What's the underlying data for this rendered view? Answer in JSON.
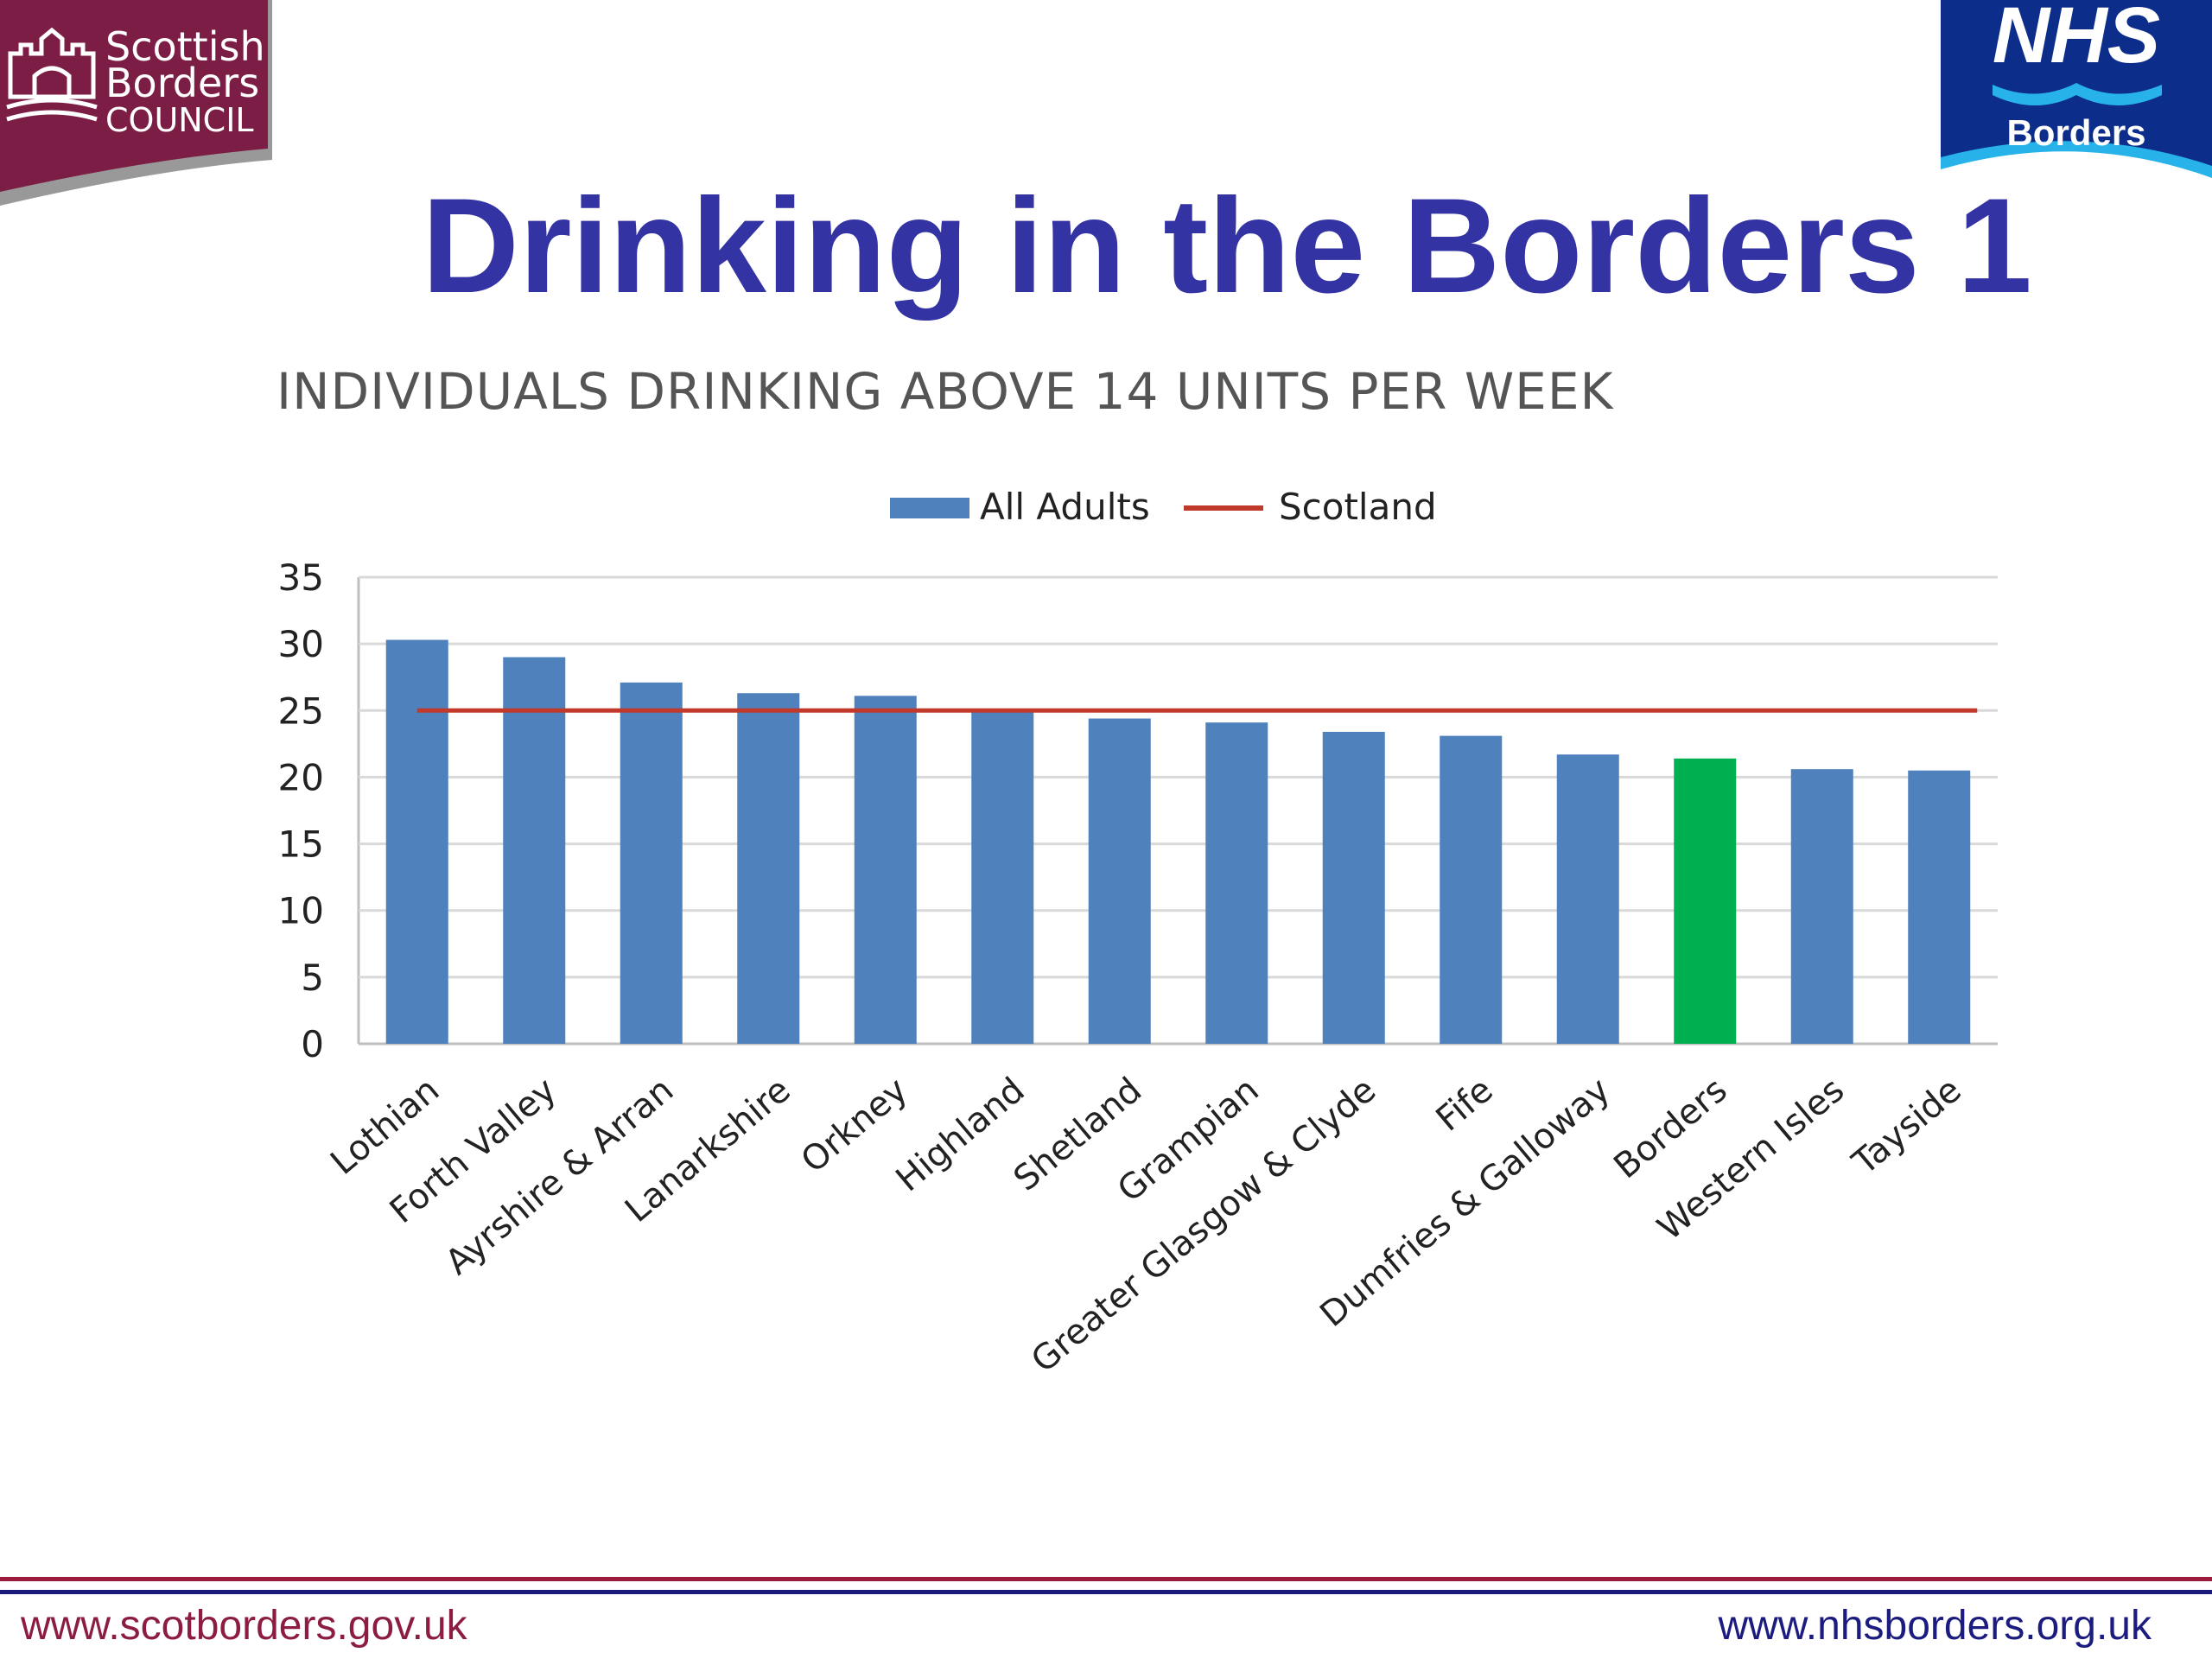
{
  "logos": {
    "left": {
      "lines": [
        "Scottish",
        "Borders",
        "COUNCIL"
      ],
      "color": "#7b1d44"
    },
    "right": {
      "brand": "NHS",
      "region": "Borders",
      "color": "#0c2d8a",
      "wave_color": "#27b3ea"
    }
  },
  "title": "Drinking in the Borders 1",
  "colors": {
    "title": "#3333a3",
    "bar": "#4f81bd",
    "highlight": "#00b050",
    "scotland_line": "#c0392b"
  },
  "chart_data": {
    "type": "bar",
    "title": "INDIVIDUALS DRINKING ABOVE 14 UNITS PER WEEK",
    "xlabel": "",
    "ylabel": "",
    "ylim": [
      0,
      35
    ],
    "yticks": [
      0,
      5,
      10,
      15,
      20,
      25,
      30,
      35
    ],
    "grid": true,
    "legend_position": "top-center",
    "categories": [
      "Lothian",
      "Forth Valley",
      "Ayrshire & Arran",
      "Lanarkshire",
      "Orkney",
      "Highland",
      "Shetland",
      "Grampian",
      "Greater Glasgow & Clyde",
      "Fife",
      "Dumfries & Galloway",
      "Borders",
      "Western Isles",
      "Tayside"
    ],
    "series": [
      {
        "name": "All Adults",
        "type": "bar",
        "values": [
          30.3,
          29.0,
          27.1,
          26.3,
          26.1,
          25.1,
          24.4,
          24.1,
          23.4,
          23.1,
          21.7,
          21.4,
          20.6,
          20.5
        ],
        "highlight_category": "Borders"
      },
      {
        "name": "Scotland",
        "type": "line",
        "value": 25.0
      }
    ]
  },
  "footer": {
    "left_url": "www.scotborders.gov.uk",
    "right_url": "www.nhsborders.org.uk"
  }
}
